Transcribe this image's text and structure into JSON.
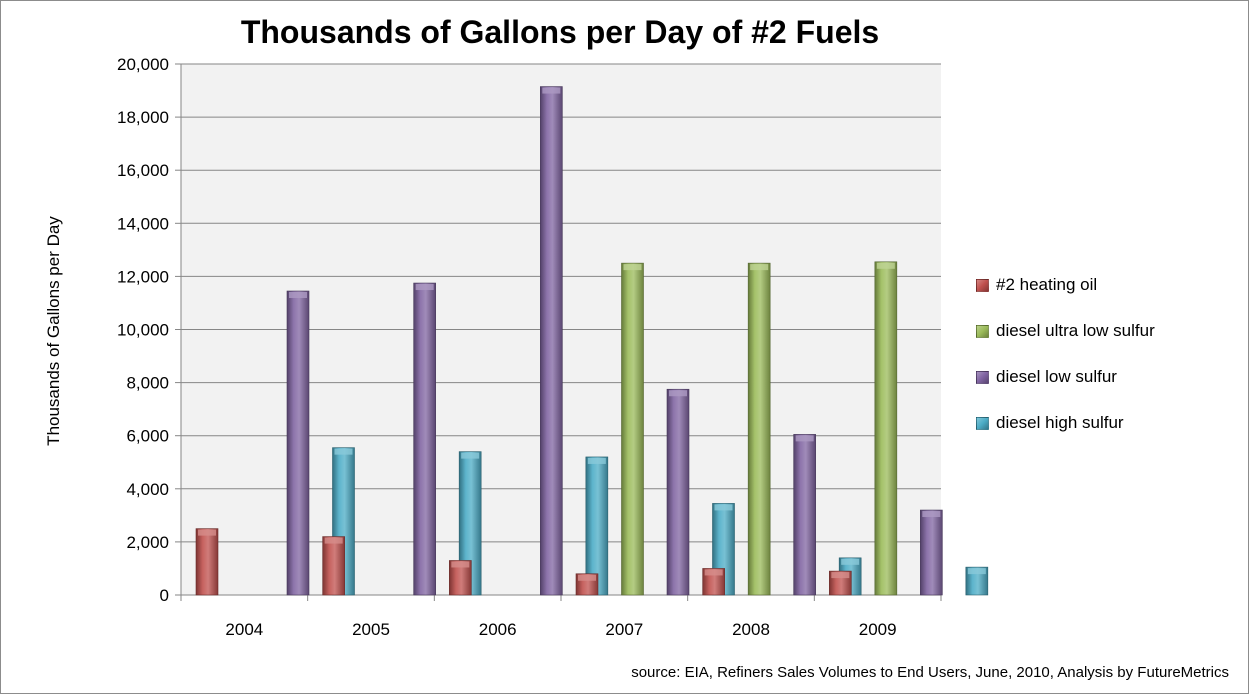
{
  "chart_data": {
    "type": "bar",
    "title": "Thousands of Gallons per Day of #2 Fuels",
    "xlabel": "",
    "ylabel": "Thousands of Gallons per Day",
    "ylim": [
      0,
      20000
    ],
    "yticks": [
      "0",
      "2,000",
      "4,000",
      "6,000",
      "8,000",
      "10,000",
      "12,000",
      "14,000",
      "16,000",
      "18,000",
      "20,000"
    ],
    "categories": [
      "2004",
      "2005",
      "2006",
      "2007",
      "2008",
      "2009"
    ],
    "series": [
      {
        "name": "#2 heating oil",
        "color": "#c0504d",
        "values": [
          2500,
          2200,
          1300,
          800,
          1000,
          900
        ]
      },
      {
        "name": "diesel ultra low sulfur",
        "color": "#9bbb59",
        "values": [
          null,
          null,
          null,
          12500,
          12500,
          12550
        ]
      },
      {
        "name": "diesel low sulfur",
        "color": "#8064a2",
        "values": [
          11450,
          11750,
          19150,
          7750,
          6050,
          3200
        ]
      },
      {
        "name": "diesel high sulfur",
        "color": "#4bacc6",
        "values": [
          5550,
          5400,
          5200,
          3450,
          1400,
          1050
        ]
      }
    ],
    "grid": true,
    "legend_position": "right",
    "plot_background": "#f2f2f2",
    "source": "source: EIA, Refiners Sales Volumes to End Users, June, 2010, Analysis by FutureMetrics"
  }
}
